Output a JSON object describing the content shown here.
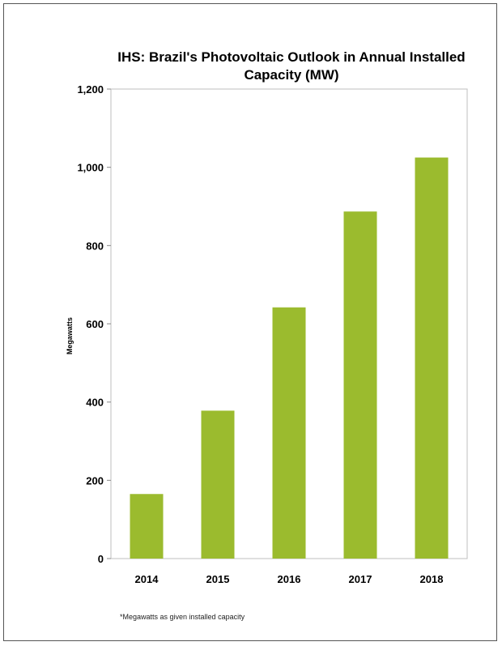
{
  "chart_data": {
    "type": "bar",
    "title": "IHS: Brazil's Photovoltaic Outlook in Annual Installed Capacity (MW)",
    "xlabel": "",
    "ylabel": "Megawatts",
    "categories": [
      "2014",
      "2015",
      "2016",
      "2017",
      "2018"
    ],
    "values": [
      165,
      378,
      642,
      887,
      1025
    ],
    "ylim": [
      0,
      1200
    ],
    "yticks": [
      0,
      200,
      400,
      600,
      800,
      1000,
      1200
    ],
    "ytick_labels": [
      "0",
      "200",
      "400",
      "600",
      "800",
      "1,000",
      "1,200"
    ],
    "grid": false,
    "legend": "none",
    "bar_color": "#9bbb2e",
    "footnote": "*Megawatts as given installed capacity"
  }
}
